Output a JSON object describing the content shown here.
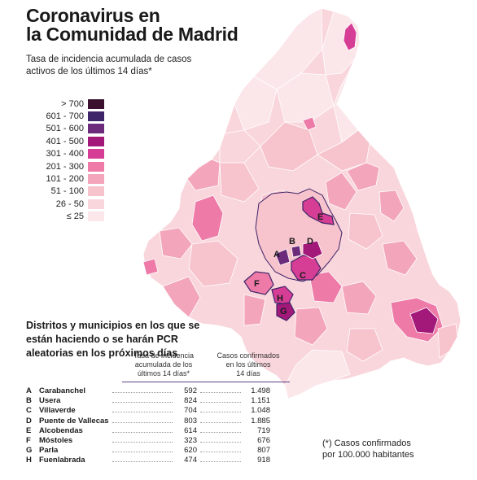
{
  "title_line1": "Coronavirus en",
  "title_line2": "la Comunidad de Madrid",
  "subtitle": "Tasa de incidencia acumulada de casos activos de los últimos 14 días*",
  "legend": [
    {
      "label": "> 700",
      "color": "#3b0f2e"
    },
    {
      "label": "601 - 700",
      "color": "#3e2468"
    },
    {
      "label": "501 - 600",
      "color": "#6b2a7a"
    },
    {
      "label": "401 - 500",
      "color": "#a3197a"
    },
    {
      "label": "301 - 400",
      "color": "#d63d95"
    },
    {
      "label": "201 - 300",
      "color": "#ee7aa8"
    },
    {
      "label": "101 - 200",
      "color": "#f3a6bb"
    },
    {
      "label": "51 - 100",
      "color": "#f7c3cc"
    },
    {
      "label": "26 - 50",
      "color": "#f9d6dc"
    },
    {
      "label": "≤ 25",
      "color": "#fbe6ea"
    }
  ],
  "map_labels": [
    "A",
    "B",
    "C",
    "D",
    "E",
    "F",
    "G",
    "H"
  ],
  "pcr_heading": "Distritos y municipios en los que se están haciendo o se harán PCR aleatorias en los próximos días",
  "col_rate_head": "Tasa de incidencia\nacumulada de los\núltimos 14 días*",
  "col_cases_head": "Casos confirmados\nen los últimos\n14 días",
  "rows": [
    {
      "code": "A",
      "name": "Carabanchel",
      "rate": "592",
      "cases": "1.498"
    },
    {
      "code": "B",
      "name": "Usera",
      "rate": "824",
      "cases": "1.151"
    },
    {
      "code": "C",
      "name": "Villaverde",
      "rate": "704",
      "cases": "1.048"
    },
    {
      "code": "D",
      "name": "Puente de Vallecas",
      "rate": "803",
      "cases": "1.885"
    },
    {
      "code": "E",
      "name": "Alcobendas",
      "rate": "614",
      "cases": "719"
    },
    {
      "code": "F",
      "name": "Móstoles",
      "rate": "323",
      "cases": "676"
    },
    {
      "code": "G",
      "name": "Parla",
      "rate": "620",
      "cases": "807"
    },
    {
      "code": "H",
      "name": "Fuenlabrada",
      "rate": "474",
      "cases": "918"
    }
  ],
  "footnote": "(*) Casos confirmados\n     por 100.000 habitantes",
  "colors": {
    "base": "#f9d6dc",
    "border": "#ffffff",
    "district_outline": "#3e2468"
  }
}
